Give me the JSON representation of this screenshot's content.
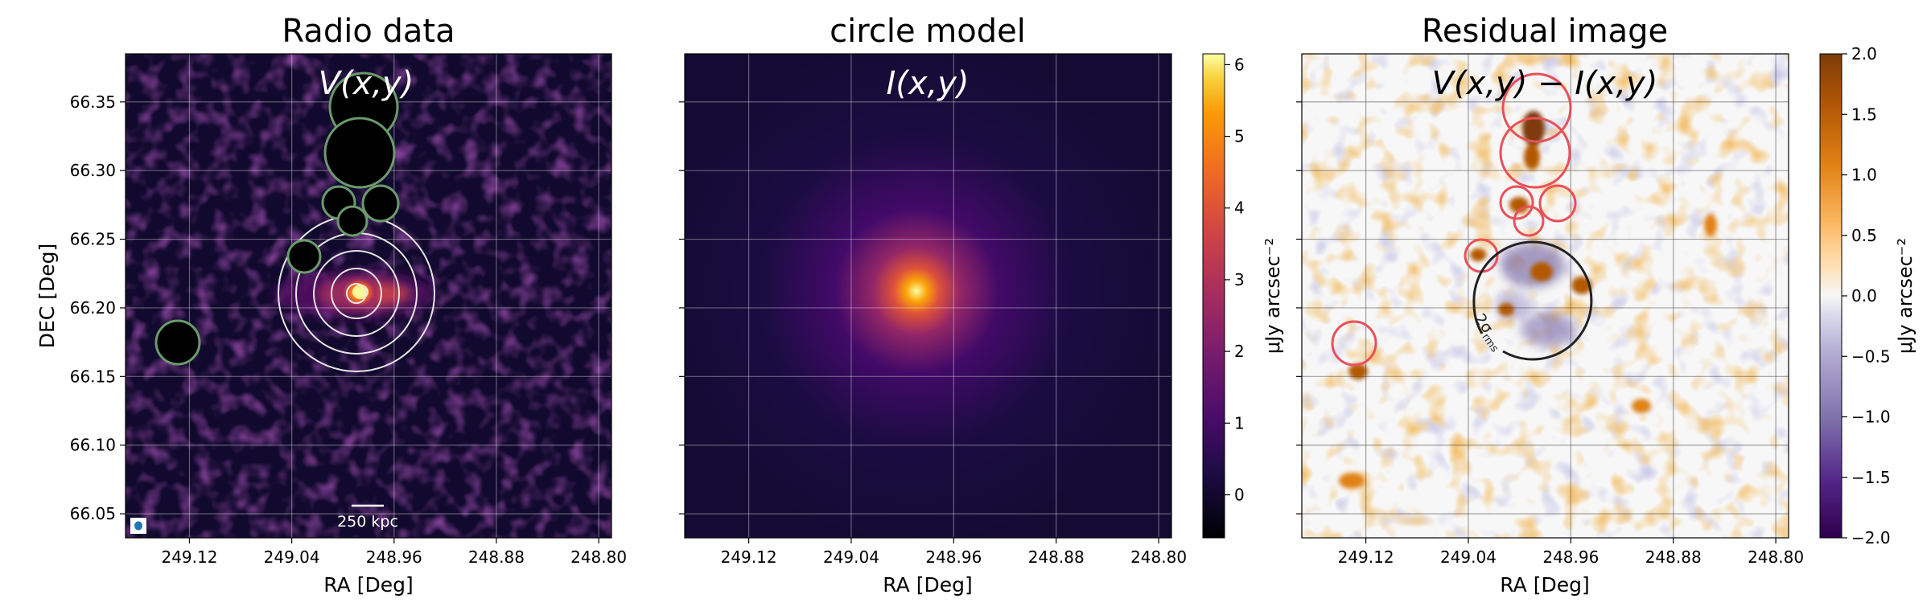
{
  "chart_data": [
    {
      "type": "heatmap",
      "title": "Radio data",
      "annotation": "V(x,y)",
      "xlabel": "RA [Deg]",
      "ylabel": "DEC [Deg]",
      "x_ticks": [
        "249.12",
        "249.04",
        "248.96",
        "248.88",
        "248.80"
      ],
      "y_ticks": [
        "66.35",
        "66.30",
        "66.25",
        "66.20",
        "66.15",
        "66.10",
        "66.05"
      ],
      "scalebar_label": "250 kpc",
      "colormap": "inferno",
      "grid": true,
      "mask_color": "#6b9b6b",
      "ring_color": "#dddddd"
    },
    {
      "type": "heatmap",
      "title": "circle model",
      "annotation": "I(x,y)",
      "xlabel": "RA [Deg]",
      "x_ticks": [
        "249.12",
        "249.04",
        "248.96",
        "248.88",
        "248.80"
      ],
      "colormap": "inferno",
      "grid": true,
      "colorbar": {
        "label": "μJy arcsec⁻²",
        "range": [
          -0.6,
          6.15
        ],
        "ticks": [
          "0",
          "1",
          "2",
          "3",
          "4",
          "5",
          "6"
        ]
      }
    },
    {
      "type": "heatmap",
      "title": "Residual image",
      "annotation": "V(x,y) − I(x,y)",
      "xlabel": "RA [Deg]",
      "x_ticks": [
        "249.12",
        "249.04",
        "248.96",
        "248.88",
        "248.80"
      ],
      "colormap": "PuOr_r",
      "grid": true,
      "contour_label": "2σ",
      "contour_label_sub": "rms",
      "mask_color": "#e8505a",
      "colorbar": {
        "label": "μJy arcsec⁻²",
        "range": [
          -2.0,
          2.0
        ],
        "ticks": [
          "2.0",
          "1.5",
          "1.0",
          "0.5",
          "0.0",
          "−0.5",
          "−1.0",
          "−1.5",
          "−2.0"
        ]
      }
    }
  ]
}
